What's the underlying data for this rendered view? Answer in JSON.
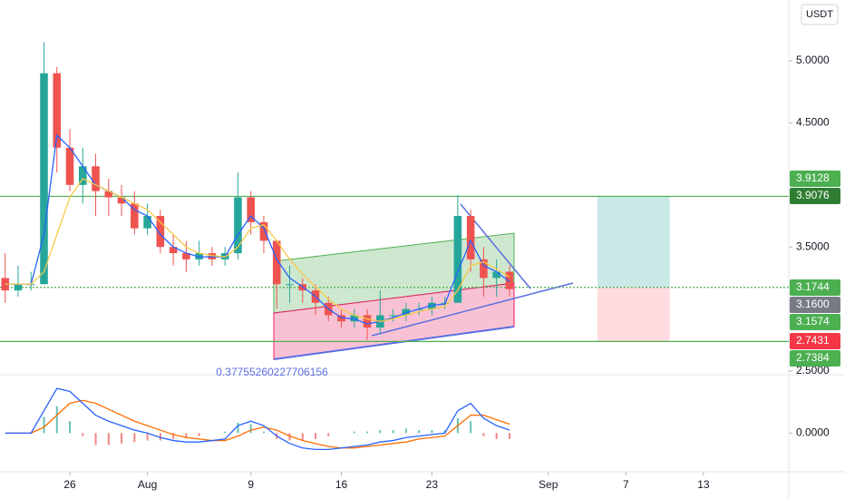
{
  "chart_data": [
    {
      "type": "candlestick",
      "currency": "USDT",
      "annotation": "0.37755260227706156",
      "x": [
        21,
        22,
        23,
        24,
        25,
        26,
        27,
        28,
        29,
        30,
        31,
        32,
        33,
        34,
        35,
        36,
        37,
        38,
        39,
        40,
        41,
        42,
        43,
        44,
        45,
        46,
        47,
        48,
        49,
        50,
        51,
        52,
        53,
        54,
        55,
        56,
        57,
        58,
        59,
        60
      ],
      "open": [
        3.25,
        3.15,
        3.2,
        3.2,
        4.9,
        4.3,
        4.0,
        4.15,
        3.95,
        3.9,
        3.85,
        3.65,
        3.75,
        3.5,
        3.45,
        3.4,
        3.45,
        3.4,
        3.45,
        3.9,
        3.7,
        3.55,
        3.2,
        3.2,
        3.15,
        3.05,
        2.95,
        2.9,
        2.95,
        2.85,
        2.95,
        2.95,
        3.0,
        3.0,
        3.05,
        3.05,
        3.75,
        3.4,
        3.25,
        3.3
      ],
      "high": [
        3.45,
        3.35,
        3.3,
        5.15,
        4.95,
        4.45,
        4.3,
        4.25,
        4.05,
        4.0,
        3.95,
        3.85,
        3.8,
        3.6,
        3.55,
        3.55,
        3.5,
        3.5,
        4.1,
        3.95,
        3.75,
        3.55,
        3.35,
        3.25,
        3.2,
        3.1,
        3.0,
        3.0,
        3.0,
        3.15,
        3.0,
        3.05,
        3.05,
        3.1,
        3.1,
        3.92,
        3.8,
        3.5,
        3.4,
        3.35
      ],
      "low": [
        3.05,
        3.1,
        3.15,
        3.2,
        4.1,
        3.95,
        3.85,
        3.75,
        3.75,
        3.75,
        3.6,
        3.6,
        3.45,
        3.35,
        3.3,
        3.35,
        3.35,
        3.35,
        3.4,
        3.6,
        3.45,
        3.0,
        3.05,
        3.05,
        2.95,
        2.9,
        2.85,
        2.85,
        2.75,
        2.8,
        2.9,
        2.9,
        2.95,
        2.95,
        3.0,
        3.05,
        3.3,
        3.1,
        3.1,
        3.1
      ],
      "close": [
        3.15,
        3.2,
        3.2,
        4.9,
        4.3,
        4.0,
        4.15,
        3.95,
        3.9,
        3.85,
        3.65,
        3.75,
        3.5,
        3.45,
        3.4,
        3.45,
        3.4,
        3.45,
        3.9,
        3.7,
        3.55,
        3.2,
        3.2,
        3.15,
        3.05,
        2.95,
        2.9,
        2.95,
        2.85,
        2.95,
        2.95,
        3.0,
        3.0,
        3.05,
        3.05,
        3.75,
        3.4,
        3.25,
        3.3,
        3.16
      ],
      "up_color": "#26a69a",
      "down_color": "#ef5350",
      "overlays": [
        {
          "color": "#2962ff",
          "values": [
            3.2,
            3.2,
            3.2,
            3.6,
            4.4,
            4.3,
            4.15,
            4.0,
            3.95,
            3.9,
            3.8,
            3.75,
            3.6,
            3.5,
            3.45,
            3.42,
            3.42,
            3.42,
            3.6,
            3.75,
            3.65,
            3.4,
            3.25,
            3.18,
            3.1,
            3.0,
            2.93,
            2.92,
            2.88,
            2.9,
            2.93,
            2.97,
            3.0,
            3.03,
            3.04,
            3.3,
            3.55,
            3.35,
            3.3,
            3.22
          ]
        },
        {
          "color": "#f7c948",
          "values": [
            3.2,
            3.2,
            3.2,
            3.3,
            3.6,
            3.9,
            4.05,
            4.0,
            3.95,
            3.9,
            3.85,
            3.8,
            3.7,
            3.6,
            3.5,
            3.45,
            3.43,
            3.42,
            3.5,
            3.65,
            3.68,
            3.55,
            3.4,
            3.28,
            3.18,
            3.08,
            3.0,
            2.95,
            2.92,
            2.9,
            2.92,
            2.95,
            2.98,
            3.0,
            3.02,
            3.15,
            3.35,
            3.38,
            3.32,
            3.26
          ]
        }
      ],
      "hlines": [
        {
          "value": 3.9076,
          "color": "#4caf50",
          "dash": false
        },
        {
          "value": 3.1744,
          "color": "#4caf50",
          "dash": true
        },
        {
          "value": 2.7384,
          "color": "#4caf50",
          "dash": false
        }
      ],
      "position": {
        "start": 66.8,
        "end": 72.4,
        "target": 3.9076,
        "entry": 3.1744,
        "stop": 2.7431
      },
      "price_labels": [
        {
          "value": 3.9128,
          "label": "3.9128",
          "color": "#4caf50"
        },
        {
          "value": 3.9076,
          "label": "3.9076",
          "color": "#2e7d32"
        },
        {
          "value": 3.1744,
          "label": "3.1744",
          "color": "#4caf50"
        },
        {
          "value": 3.16,
          "label": "3.1600",
          "color": "#787b86"
        },
        {
          "value": 3.1574,
          "label": "3.1574",
          "color": "#4caf50"
        },
        {
          "value": 2.7431,
          "label": "2.7431",
          "color": "#f23645"
        },
        {
          "value": 2.7384,
          "label": "2.7384",
          "color": "#4caf50"
        }
      ],
      "xlim": [
        20.6,
        81.6
      ],
      "xticks": [
        26,
        {
          "value": 32,
          "label": "Aug"
        },
        {
          "value": 40,
          "label": "9"
        },
        {
          "value": 47,
          "label": "16"
        },
        {
          "value": 54,
          "label": "23"
        },
        {
          "value": 63,
          "label": "Sep"
        },
        {
          "value": 69,
          "label": "7"
        },
        {
          "value": 75,
          "label": "13"
        }
      ],
      "ylim": [
        2.478,
        5.49
      ],
      "yticks": [
        {
          "value": 5,
          "label": "5.0000"
        },
        {
          "value": 4.5,
          "label": "4.5000"
        },
        {
          "value": 3.5,
          "label": "3.5000"
        },
        {
          "value": 2.5,
          "label": "2.5000"
        }
      ]
    },
    {
      "type": "macd",
      "macd": {
        "color": "#2962ff",
        "values": [
          0,
          0,
          0,
          0.15,
          0.3,
          0.28,
          0.2,
          0.12,
          0.08,
          0.05,
          0.02,
          0,
          -0.03,
          -0.05,
          -0.06,
          -0.06,
          -0.05,
          -0.04,
          0.05,
          0.08,
          0.05,
          -0.02,
          -0.07,
          -0.1,
          -0.11,
          -0.11,
          -0.1,
          -0.09,
          -0.08,
          -0.06,
          -0.05,
          -0.03,
          -0.02,
          -0.01,
          0,
          0.15,
          0.2,
          0.1,
          0.05,
          0.02
        ]
      },
      "signal": {
        "color": "#ff6d00",
        "values": [
          0,
          0,
          0,
          0.04,
          0.12,
          0.2,
          0.22,
          0.2,
          0.16,
          0.12,
          0.08,
          0.05,
          0.02,
          -0.01,
          -0.03,
          -0.04,
          -0.05,
          -0.05,
          -0.02,
          0.02,
          0.04,
          0.02,
          -0.02,
          -0.05,
          -0.07,
          -0.09,
          -0.1,
          -0.1,
          -0.09,
          -0.08,
          -0.07,
          -0.06,
          -0.04,
          -0.03,
          -0.02,
          0.05,
          0.12,
          0.12,
          0.09,
          0.06
        ]
      },
      "histogram": {
        "up_color": "#26a69a",
        "down_color": "#ef5350",
        "values": [
          0,
          0,
          0,
          0.11,
          0.18,
          0.08,
          -0.02,
          -0.08,
          -0.08,
          -0.07,
          -0.06,
          -0.05,
          -0.05,
          -0.04,
          -0.03,
          -0.02,
          0,
          0.01,
          0.07,
          0.06,
          0.01,
          -0.04,
          -0.05,
          -0.05,
          -0.04,
          -0.02,
          0,
          0.01,
          0.01,
          0.02,
          0.02,
          0.03,
          0.02,
          0.02,
          0.02,
          0.1,
          0.08,
          -0.02,
          -0.04,
          -0.04
        ]
      },
      "ylim": [
        -0.26,
        0.38
      ],
      "yticks": [
        {
          "value": 0,
          "label": "0.0000"
        }
      ]
    }
  ]
}
